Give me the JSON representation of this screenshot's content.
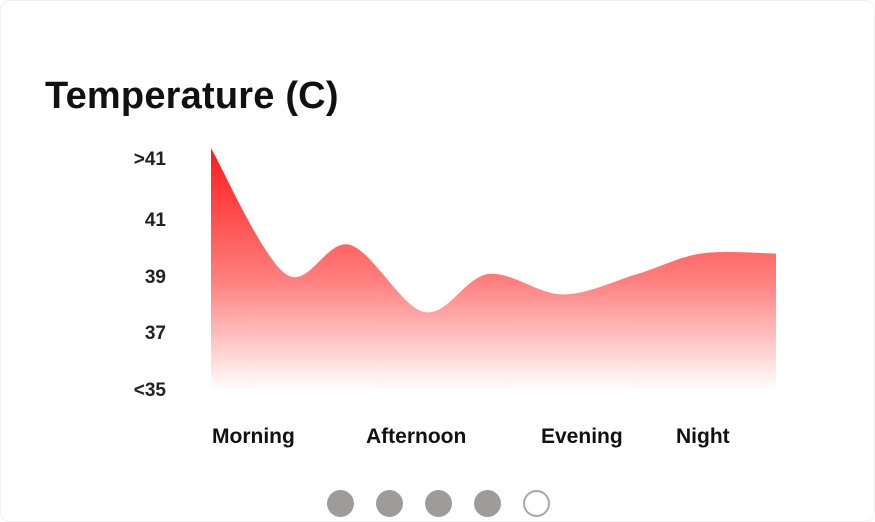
{
  "chart_data": {
    "type": "area",
    "title": "Temperature (C)",
    "xlabel": "",
    "ylabel": "",
    "categories": [
      "Morning",
      "Afternoon",
      "Evening",
      "Night"
    ],
    "y_tick_labels": [
      "<35",
      "37",
      "39",
      "41",
      ">41"
    ],
    "y_tick_values": [
      35,
      37,
      39,
      41,
      43
    ],
    "ylim": [
      35,
      43
    ],
    "grid": false,
    "legend": "none",
    "series": [
      {
        "x": [
          0,
          0.35,
          0.65,
          1.0,
          1.3,
          1.65,
          2.0,
          2.3,
          2.65
        ],
        "values": [
          43.3,
          39.0,
          40.0,
          37.7,
          39.0,
          38.3,
          39.0,
          39.7,
          39.7
        ],
        "color_top": "#ff1a1a",
        "color_bottom": "#ffffff"
      }
    ]
  },
  "pagination": {
    "pages": 5,
    "current": 5
  }
}
